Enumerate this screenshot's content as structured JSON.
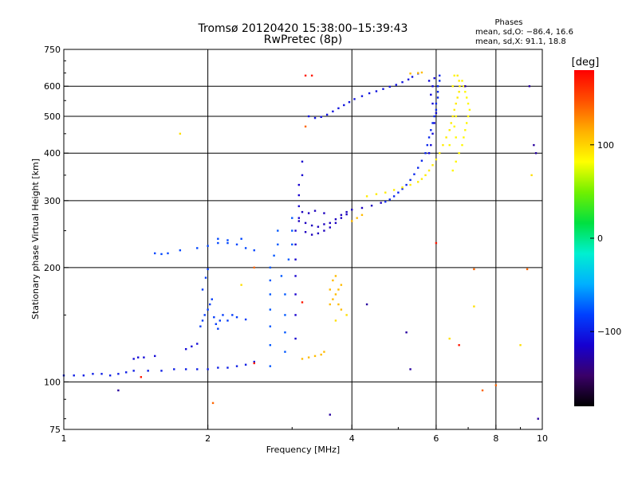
{
  "chart_data": {
    "type": "scatter",
    "title": "Tromsø 20120420 15:38:00–15:39:43",
    "subtitle": "RwPretec (8p)",
    "xlabel": "Frequency [MHz]",
    "ylabel": "Stationary phase Virtual Height [km]",
    "x_scale": "log",
    "y_scale": "log",
    "xlim": [
      1,
      10
    ],
    "ylim": [
      75,
      750
    ],
    "x_ticks": [
      {
        "value": 1,
        "label": "1"
      },
      {
        "value": 2,
        "label": "2"
      },
      {
        "value": 4,
        "label": "4"
      },
      {
        "value": 6,
        "label": "6"
      },
      {
        "value": 8,
        "label": "8"
      },
      {
        "value": 10,
        "label": "10"
      }
    ],
    "y_ticks": [
      {
        "value": 75,
        "label": "75"
      },
      {
        "value": 100,
        "label": "100"
      },
      {
        "value": 200,
        "label": "200"
      },
      {
        "value": 300,
        "label": "300"
      },
      {
        "value": 400,
        "label": "400"
      },
      {
        "value": 500,
        "label": "500"
      },
      {
        "value": 600,
        "label": "600"
      },
      {
        "value": 750,
        "label": "750"
      }
    ],
    "grid_x": [
      2,
      4,
      6,
      8
    ],
    "grid_y": [
      100,
      200,
      300,
      400,
      500,
      600
    ],
    "stats": {
      "heading": "Phases",
      "line_o": "mean, sd,O: −86.4, 16.6",
      "line_x": "mean, sd,X:  91.1, 18.8"
    },
    "colorbar": {
      "label": "[deg]",
      "ticks": [
        {
          "value": 100,
          "label": "100"
        },
        {
          "value": 0,
          "label": "0"
        },
        {
          "value": -100,
          "label": "−100"
        }
      ],
      "range": [
        -180,
        180
      ],
      "colors": [
        "#000000",
        "#3a0068",
        "#1600d0",
        "#0040ff",
        "#00b0ff",
        "#00f0d0",
        "#00e040",
        "#70f000",
        "#ffff00",
        "#ffb000",
        "#ff5000",
        "#ff0000"
      ]
    },
    "series": [
      {
        "phase": -100,
        "points": [
          [
            1.0,
            104
          ],
          [
            1.05,
            104
          ],
          [
            1.1,
            104
          ],
          [
            1.15,
            105
          ],
          [
            1.2,
            105
          ],
          [
            1.25,
            104
          ],
          [
            1.3,
            105
          ],
          [
            1.35,
            106
          ],
          [
            1.4,
            107
          ],
          [
            1.5,
            107
          ],
          [
            1.6,
            107
          ],
          [
            1.7,
            108
          ],
          [
            1.8,
            108
          ],
          [
            1.9,
            108
          ],
          [
            2.0,
            108
          ],
          [
            2.1,
            109
          ],
          [
            2.2,
            109
          ],
          [
            2.3,
            110
          ],
          [
            2.4,
            111
          ],
          [
            2.5,
            113
          ]
        ]
      },
      {
        "phase": -110,
        "points": [
          [
            1.4,
            115
          ],
          [
            1.43,
            116
          ],
          [
            1.47,
            116
          ],
          [
            1.55,
            117
          ],
          [
            1.8,
            122
          ],
          [
            1.85,
            124
          ],
          [
            1.9,
            126
          ]
        ]
      },
      {
        "phase": -80,
        "points": [
          [
            1.55,
            218
          ],
          [
            1.6,
            217
          ],
          [
            1.65,
            218
          ],
          [
            1.75,
            222
          ],
          [
            1.9,
            225
          ],
          [
            2.0,
            228
          ],
          [
            2.1,
            232
          ],
          [
            2.2,
            232
          ],
          [
            2.3,
            230
          ],
          [
            2.4,
            225
          ],
          [
            2.5,
            222
          ],
          [
            2.1,
            238
          ],
          [
            2.2,
            236
          ],
          [
            2.35,
            238
          ]
        ]
      },
      {
        "phase": -85,
        "points": [
          [
            1.93,
            140
          ],
          [
            1.95,
            145
          ],
          [
            1.97,
            150
          ],
          [
            2.0,
            155
          ],
          [
            2.02,
            160
          ],
          [
            2.04,
            165
          ],
          [
            2.06,
            148
          ],
          [
            2.08,
            142
          ],
          [
            2.1,
            138
          ],
          [
            2.12,
            145
          ],
          [
            2.15,
            150
          ],
          [
            2.2,
            145
          ],
          [
            2.25,
            150
          ],
          [
            2.3,
            148
          ],
          [
            2.4,
            146
          ],
          [
            1.95,
            175
          ],
          [
            1.98,
            188
          ],
          [
            2.0,
            198
          ]
        ]
      },
      {
        "phase": -75,
        "points": [
          [
            2.7,
            110
          ],
          [
            2.7,
            125
          ],
          [
            2.7,
            140
          ],
          [
            2.7,
            155
          ],
          [
            2.7,
            170
          ],
          [
            2.7,
            185
          ],
          [
            2.7,
            200
          ],
          [
            2.75,
            215
          ],
          [
            2.8,
            230
          ],
          [
            2.8,
            250
          ],
          [
            2.85,
            190
          ],
          [
            2.9,
            170
          ],
          [
            2.9,
            150
          ],
          [
            2.9,
            135
          ],
          [
            2.9,
            120
          ],
          [
            2.95,
            210
          ],
          [
            3.0,
            230
          ],
          [
            3.0,
            250
          ],
          [
            3.0,
            270
          ]
        ]
      },
      {
        "phase": -115,
        "points": [
          [
            3.05,
            130
          ],
          [
            3.05,
            150
          ],
          [
            3.05,
            170
          ],
          [
            3.05,
            190
          ],
          [
            3.05,
            210
          ],
          [
            3.05,
            230
          ],
          [
            3.05,
            250
          ],
          [
            3.1,
            270
          ],
          [
            3.1,
            290
          ],
          [
            3.1,
            310
          ],
          [
            3.1,
            330
          ],
          [
            3.15,
            350
          ],
          [
            3.15,
            380
          ]
        ]
      },
      {
        "phase": -120,
        "points": [
          [
            3.1,
            265
          ],
          [
            3.2,
            262
          ],
          [
            3.3,
            258
          ],
          [
            3.4,
            256
          ],
          [
            3.5,
            260
          ],
          [
            3.6,
            262
          ],
          [
            3.7,
            268
          ],
          [
            3.8,
            275
          ],
          [
            3.9,
            280
          ],
          [
            4.0,
            284
          ],
          [
            4.2,
            287
          ],
          [
            4.4,
            291
          ],
          [
            4.6,
            296
          ],
          [
            3.2,
            248
          ],
          [
            3.3,
            244
          ],
          [
            3.4,
            246
          ],
          [
            3.5,
            250
          ],
          [
            3.6,
            255
          ],
          [
            3.7,
            262
          ],
          [
            3.8,
            270
          ],
          [
            3.9,
            276
          ],
          [
            3.15,
            280
          ],
          [
            3.25,
            278
          ],
          [
            3.35,
            282
          ],
          [
            3.5,
            278
          ]
        ]
      },
      {
        "phase": -95,
        "points": [
          [
            4.7,
            298
          ],
          [
            4.8,
            302
          ],
          [
            4.9,
            308
          ],
          [
            5.0,
            315
          ],
          [
            5.1,
            322
          ],
          [
            5.2,
            330
          ],
          [
            5.3,
            340
          ],
          [
            5.4,
            352
          ],
          [
            5.5,
            366
          ],
          [
            5.6,
            382
          ],
          [
            5.7,
            400
          ],
          [
            5.75,
            420
          ],
          [
            5.8,
            440
          ],
          [
            5.85,
            460
          ],
          [
            5.9,
            480
          ],
          [
            5.95,
            500
          ],
          [
            6.0,
            520
          ],
          [
            6.0,
            540
          ],
          [
            6.05,
            560
          ],
          [
            6.05,
            580
          ],
          [
            6.05,
            600
          ],
          [
            6.1,
            620
          ],
          [
            6.1,
            640
          ]
        ]
      },
      {
        "phase": -110,
        "points": [
          [
            5.8,
            400
          ],
          [
            5.85,
            420
          ],
          [
            5.9,
            450
          ],
          [
            5.95,
            480
          ],
          [
            6.0,
            510
          ],
          [
            5.9,
            540
          ],
          [
            5.85,
            570
          ],
          [
            5.9,
            600
          ],
          [
            5.95,
            630
          ],
          [
            5.8,
            620
          ]
        ]
      },
      {
        "phase": -105,
        "points": [
          [
            3.25,
            500
          ],
          [
            3.35,
            495
          ],
          [
            3.45,
            498
          ],
          [
            3.55,
            505
          ],
          [
            3.65,
            515
          ],
          [
            3.75,
            525
          ],
          [
            3.85,
            535
          ],
          [
            3.95,
            545
          ],
          [
            4.05,
            555
          ],
          [
            4.2,
            565
          ],
          [
            4.35,
            575
          ],
          [
            4.5,
            582
          ],
          [
            4.65,
            590
          ],
          [
            4.8,
            598
          ],
          [
            4.95,
            605
          ],
          [
            5.1,
            615
          ],
          [
            5.25,
            625
          ],
          [
            5.35,
            635
          ],
          [
            5.5,
            648
          ]
        ]
      },
      {
        "phase": 90,
        "points": [
          [
            4.3,
            308
          ],
          [
            4.5,
            312
          ],
          [
            4.7,
            315
          ],
          [
            4.9,
            320
          ],
          [
            5.1,
            325
          ],
          [
            5.3,
            330
          ],
          [
            5.5,
            336
          ],
          [
            5.6,
            342
          ],
          [
            5.7,
            350
          ],
          [
            5.8,
            360
          ],
          [
            5.9,
            372
          ],
          [
            6.0,
            385
          ],
          [
            6.1,
            400
          ],
          [
            6.2,
            420
          ],
          [
            6.3,
            440
          ],
          [
            6.4,
            460
          ],
          [
            6.45,
            480
          ],
          [
            6.5,
            500
          ],
          [
            6.55,
            520
          ],
          [
            6.6,
            540
          ],
          [
            6.65,
            560
          ],
          [
            6.7,
            580
          ],
          [
            6.72,
            600
          ],
          [
            6.7,
            620
          ],
          [
            6.65,
            640
          ]
        ]
      },
      {
        "phase": 85,
        "points": [
          [
            6.5,
            360
          ],
          [
            6.6,
            380
          ],
          [
            6.7,
            400
          ],
          [
            6.8,
            420
          ],
          [
            6.85,
            440
          ],
          [
            6.9,
            460
          ],
          [
            6.95,
            480
          ],
          [
            7.0,
            500
          ],
          [
            7.05,
            520
          ],
          [
            7.0,
            540
          ],
          [
            6.95,
            560
          ],
          [
            6.9,
            580
          ],
          [
            6.85,
            600
          ],
          [
            6.8,
            620
          ],
          [
            6.6,
            500
          ],
          [
            6.55,
            470
          ],
          [
            6.6,
            440
          ],
          [
            6.4,
            420
          ],
          [
            6.5,
            600
          ],
          [
            6.55,
            640
          ]
        ]
      },
      {
        "phase": 110,
        "points": [
          [
            3.6,
            160
          ],
          [
            3.65,
            165
          ],
          [
            3.7,
            170
          ],
          [
            3.75,
            175
          ],
          [
            3.8,
            180
          ],
          [
            3.6,
            175
          ],
          [
            3.65,
            185
          ],
          [
            3.7,
            190
          ],
          [
            3.75,
            160
          ],
          [
            3.8,
            155
          ],
          [
            3.15,
            115
          ],
          [
            3.25,
            116
          ],
          [
            3.35,
            117
          ],
          [
            3.45,
            118
          ],
          [
            3.5,
            120
          ],
          [
            4.0,
            265
          ],
          [
            4.1,
            270
          ],
          [
            4.2,
            275
          ],
          [
            5.3,
            648
          ],
          [
            5.5,
            650
          ],
          [
            5.6,
            652
          ]
        ]
      },
      {
        "phase": 95,
        "points": [
          [
            1.75,
            450
          ],
          [
            2.35,
            180
          ],
          [
            3.7,
            145
          ],
          [
            3.9,
            150
          ],
          [
            6.4,
            130
          ],
          [
            7.2,
            158
          ],
          [
            9.0,
            125
          ],
          [
            9.5,
            350
          ]
        ]
      },
      {
        "phase": -130,
        "points": [
          [
            1.3,
            95
          ],
          [
            3.6,
            82
          ],
          [
            4.3,
            160
          ],
          [
            5.2,
            135
          ],
          [
            5.3,
            108
          ],
          [
            6.9,
            600
          ],
          [
            9.4,
            600
          ],
          [
            9.6,
            420
          ],
          [
            9.7,
            400
          ],
          [
            9.8,
            80
          ]
        ]
      },
      {
        "phase": 170,
        "points": [
          [
            1.45,
            103
          ],
          [
            2.5,
            112
          ],
          [
            3.15,
            162
          ],
          [
            3.2,
            640
          ],
          [
            3.3,
            640
          ],
          [
            6.0,
            232
          ],
          [
            6.7,
            125
          ]
        ]
      },
      {
        "phase": 140,
        "points": [
          [
            2.05,
            88
          ],
          [
            2.5,
            200
          ],
          [
            3.2,
            470
          ],
          [
            7.5,
            95
          ],
          [
            7.2,
            198
          ],
          [
            8.0,
            98
          ],
          [
            9.3,
            198
          ]
        ]
      }
    ]
  }
}
